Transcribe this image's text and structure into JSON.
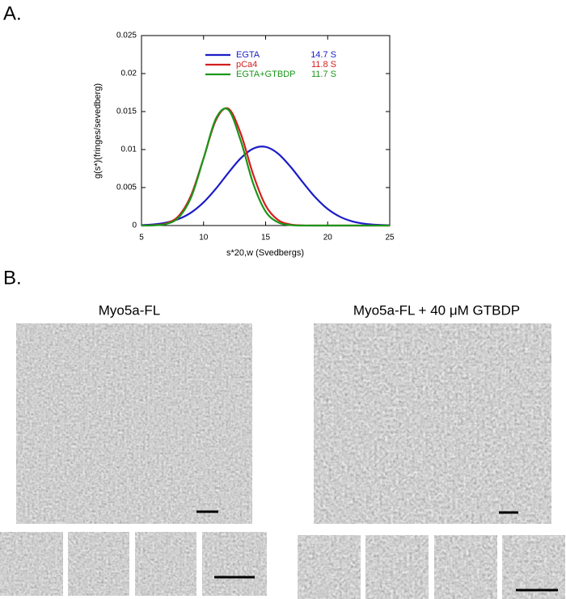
{
  "panel_a": {
    "label": "A."
  },
  "chart_data": {
    "type": "line",
    "x_label": "s*20,w (Svedbergs)",
    "y_label": "g(s*)(fringes/sevedberg)",
    "x": [
      5,
      6,
      7,
      8,
      9,
      10,
      11,
      12,
      13,
      14,
      15,
      16,
      17,
      18,
      19,
      20,
      21,
      22,
      23,
      24,
      25
    ],
    "series": [
      {
        "name": "EGTA",
        "annotation": "14.7 S",
        "color": "#1c1cc8",
        "values": [
          6e-05,
          0.00015,
          0.00039,
          0.00086,
          0.00171,
          0.00305,
          0.00486,
          0.00694,
          0.00886,
          0.01012,
          0.01035,
          0.00947,
          0.00775,
          0.00568,
          0.00372,
          0.00218,
          0.00115,
          0.00054,
          0.00023,
          9e-05,
          3e-05
        ]
      },
      {
        "name": "pCa4",
        "annotation": "11.8 S",
        "color": "#d41e1e",
        "values": [
          0,
          5e-05,
          0.00029,
          0.00127,
          0.00399,
          0.00885,
          0.01388,
          0.01539,
          0.01208,
          0.00671,
          0.00264,
          0.00073,
          0.00014,
          2e-05,
          0,
          0,
          0,
          0,
          0,
          0,
          0
        ]
      },
      {
        "name": "EGTA+GTBDP",
        "annotation": "11.7 S",
        "color": "#1a961a",
        "values": [
          0,
          3e-05,
          0.00021,
          0.00107,
          0.00373,
          0.00882,
          0.01409,
          0.01523,
          0.01114,
          0.00552,
          0.00185,
          0.00042,
          6e-05,
          0,
          0,
          0,
          0,
          0,
          0,
          0,
          0
        ]
      }
    ],
    "xlim": [
      5,
      25
    ],
    "xticks": [
      5,
      10,
      15,
      20,
      25
    ],
    "ylim": [
      0,
      0.025
    ],
    "yticks": [
      0,
      0.005,
      0.01,
      0.015,
      0.02,
      0.025
    ],
    "legend": "top"
  },
  "panel_b": {
    "label": "B.",
    "groups": [
      {
        "title": "Myo5a-FL"
      },
      {
        "title": "Myo5a-FL + 40 μM GTBDP"
      }
    ]
  }
}
